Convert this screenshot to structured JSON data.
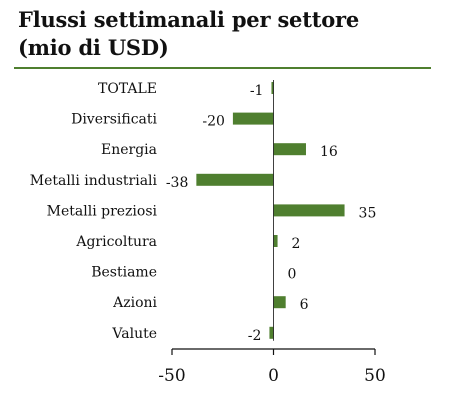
{
  "title_line1": "Flussi settimanali per settore",
  "title_line2": "(mio di USD)",
  "colors": {
    "bar": "#4f7f2f",
    "rule": "#4f7f2f",
    "axis": "#111111"
  },
  "chart_data": {
    "type": "bar",
    "orientation": "horizontal",
    "title": "Flussi settimanali per settore (mio di USD)",
    "categories": [
      "TOTALE",
      "Diversificati",
      "Energia",
      "Metalli industriali",
      "Metalli preziosi",
      "Agricoltura",
      "Bestiame",
      "Azioni",
      "Valute"
    ],
    "values": [
      -1,
      -20,
      16,
      -38,
      35,
      2,
      0,
      6,
      -2
    ],
    "value_labels": [
      "-1",
      "-20",
      "16",
      "-38",
      "35",
      "2",
      "0",
      "6",
      "-2"
    ],
    "xlim": [
      -50,
      50
    ],
    "xticks": [
      -50,
      0,
      50
    ],
    "xtick_labels": [
      "-50",
      "0",
      "50"
    ],
    "grid": false,
    "legend": "none"
  }
}
